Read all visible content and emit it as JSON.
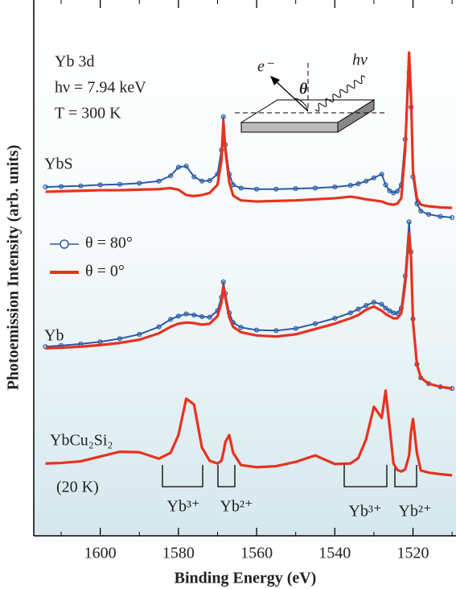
{
  "chart_data": {
    "type": "line",
    "xlabel": "Binding Energy (eV)",
    "ylabel": "Photoemission Intensity (arb. units)",
    "xlim": [
      1617,
      1509
    ],
    "ylim": [
      0,
      100
    ],
    "xticks": [
      1600,
      1580,
      1560,
      1540,
      1520
    ],
    "xminorticks": [
      1610,
      1590,
      1570,
      1550,
      1530,
      1510
    ],
    "legend": [
      {
        "label": "θ = 80°",
        "color": "#2a5aa8",
        "marker": "circle"
      },
      {
        "label": "θ = 0°",
        "color": "#e8321e",
        "marker": "none"
      }
    ],
    "annotations": [
      "Yb 3d",
      "hν = 7.94 keV",
      "T = 300 K",
      "YbS",
      "Yb",
      "YbCu₂Si₂",
      "(20 K)",
      "Yb³⁺",
      "Yb²⁺",
      "Yb³⁺",
      "Yb²⁺"
    ],
    "inset_labels": [
      "e⁻",
      "θ",
      "hν"
    ],
    "x": [
      1614,
      1610,
      1605,
      1600,
      1595,
      1590,
      1585,
      1582,
      1580,
      1578,
      1576,
      1574,
      1572,
      1570,
      1569,
      1568.5,
      1568,
      1567,
      1566,
      1564,
      1560,
      1555,
      1550,
      1545,
      1540,
      1536,
      1534,
      1532,
      1530,
      1528,
      1527,
      1526,
      1525,
      1524,
      1523,
      1522,
      1521,
      1520.5,
      1520,
      1519,
      1518,
      1516,
      1513,
      1510
    ],
    "series": [
      {
        "style": 0,
        "values": [
          65.1,
          65.2,
          65.3,
          65.5,
          65.6,
          65.8,
          66.2,
          67.2,
          68.8,
          69.0,
          67.0,
          66.2,
          66.3,
          67.5,
          72,
          78.2,
          73,
          67.5,
          65.5,
          64.9,
          64.7,
          64.7,
          64.8,
          64.9,
          65.1,
          65.4,
          65.7,
          66.2,
          66.8,
          67.5,
          65.5,
          64.4,
          64.0,
          64.3,
          65.5,
          74,
          86.5,
          80,
          67,
          62,
          60.6,
          60.0,
          59.6,
          59.4
        ]
      },
      {
        "style": 1,
        "values": [
          64.2,
          64.3,
          64.4,
          64.5,
          64.5,
          64.6,
          64.7,
          64.9,
          64.6,
          63.6,
          63.4,
          63.6,
          64.0,
          65.5,
          70,
          77.4,
          72,
          66,
          63.5,
          62.6,
          62.4,
          62.5,
          62.6,
          62.8,
          63.0,
          63.3,
          63.1,
          62.8,
          62.6,
          62.4,
          62.1,
          61.9,
          61.8,
          62.0,
          63,
          72,
          90.2,
          82,
          68,
          63,
          61.8,
          61.5,
          61.3,
          61.2
        ]
      },
      {
        "style": 0,
        "values": [
          35.3,
          35.5,
          35.8,
          36.2,
          36.8,
          37.6,
          39.0,
          40.4,
          41.0,
          41.4,
          41.2,
          40.9,
          40.8,
          42.0,
          44.5,
          47.4,
          45.2,
          41.6,
          39.8,
          38.9,
          38.4,
          38.3,
          38.7,
          39.6,
          40.6,
          41.6,
          42.3,
          43.0,
          43.6,
          43.2,
          42.5,
          42.0,
          41.6,
          41.5,
          42.5,
          48.5,
          58.6,
          53,
          40.5,
          32,
          29.5,
          28.4,
          27.8,
          27.5
        ]
      },
      {
        "style": 1,
        "values": [
          35.0,
          35.1,
          35.3,
          35.6,
          36.0,
          36.6,
          37.8,
          39.0,
          39.6,
          39.8,
          39.7,
          39.4,
          39.6,
          41.0,
          43.5,
          46.6,
          44.5,
          40.8,
          39.0,
          38.0,
          37.4,
          37.2,
          37.6,
          38.6,
          39.6,
          40.6,
          41.2,
          42.2,
          42.8,
          42.0,
          41.4,
          41.0,
          40.6,
          40.6,
          41.5,
          47,
          56.4,
          52,
          40,
          32,
          29.5,
          28.4,
          27.8,
          27.5
        ]
      },
      {
        "style": 1,
        "values": [
          13.5,
          13.6,
          13.9,
          14.8,
          15.7,
          15.6,
          14.4,
          15.5,
          18.8,
          25.6,
          24.5,
          16.5,
          14.0,
          13.5,
          14.0,
          15.5,
          17.5,
          18.8,
          15.5,
          13.2,
          12.8,
          13.0,
          13.8,
          15.0,
          13.4,
          13.5,
          14.5,
          18.0,
          24.1,
          22.0,
          27.1,
          20.5,
          13.5,
          12.3,
          12.0,
          12.4,
          15.0,
          19.5,
          21.8,
          15.5,
          12.2,
          11.8,
          11.5,
          11.3
        ]
      }
    ]
  }
}
